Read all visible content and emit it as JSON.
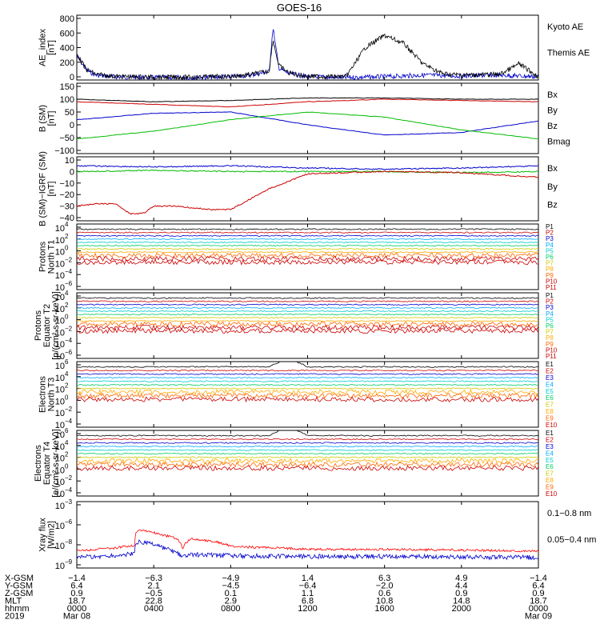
{
  "title": "GOES-16",
  "panels": [
    {
      "id": "ae",
      "ylabel": [
        "AE_index",
        "[nT]"
      ],
      "ticks": [
        "800",
        "600",
        "400",
        "200",
        "0"
      ],
      "legend": [
        {
          "text": "Kyoto AE",
          "color": "#0000cc"
        },
        {
          "text": "Themis AE",
          "color": "#000000"
        }
      ]
    },
    {
      "id": "bsm",
      "ylabel": [
        "B (SM)",
        "[nT]"
      ],
      "ticks": [
        "150",
        "100",
        "50",
        "0",
        "−50",
        "−100"
      ],
      "legend": [
        {
          "text": "Bx",
          "color": "#0000cc"
        },
        {
          "text": "By",
          "color": "#00bb00"
        },
        {
          "text": "Bz",
          "color": "#cc0000"
        },
        {
          "text": "Bmag",
          "color": "#000000"
        }
      ]
    },
    {
      "id": "bigrf",
      "ylabel": [
        "B (SM)−IGRF (SM)",
        "[nT]"
      ],
      "ticks": [
        "10",
        "0",
        "−10",
        "−20",
        "−30",
        "−40"
      ],
      "legend": [
        {
          "text": "Bx",
          "color": "#0000cc"
        },
        {
          "text": "By",
          "color": "#00bb00"
        },
        {
          "text": "Bz",
          "color": "#cc0000"
        }
      ]
    },
    {
      "id": "pn",
      "ylabel": [
        "Protons",
        "North T1"
      ],
      "ticks": [
        {
          "b": "10",
          "e": "4"
        },
        {
          "b": "10",
          "e": "2"
        },
        {
          "b": "10",
          "e": "0"
        },
        {
          "b": "10",
          "e": "−2"
        },
        {
          "b": "10",
          "e": "−4"
        },
        {
          "b": "10",
          "e": "−6"
        }
      ],
      "legend": [
        "P1",
        "P2",
        "P3",
        "P4",
        "P5",
        "P6",
        "P7",
        "P8",
        "P9",
        "P10",
        "P11"
      ]
    },
    {
      "id": "pe",
      "ylabel": [
        "Protons",
        "Equator T2",
        "[p/(cm²-s-sr-keV)]"
      ],
      "ticks": [
        {
          "b": "10",
          "e": "4"
        },
        {
          "b": "10",
          "e": "2"
        },
        {
          "b": "10",
          "e": "0"
        },
        {
          "b": "10",
          "e": "−2"
        },
        {
          "b": "10",
          "e": "−4"
        },
        {
          "b": "10",
          "e": "−6"
        }
      ],
      "legend": [
        "P1",
        "P2",
        "P3",
        "P4",
        "P5",
        "P6",
        "P7",
        "P8",
        "P9",
        "P10",
        "P11"
      ]
    },
    {
      "id": "en",
      "ylabel": [
        "Electrons",
        "North T3"
      ],
      "ticks": [
        {
          "b": "10",
          "e": "6"
        },
        {
          "b": "10",
          "e": "4"
        },
        {
          "b": "10",
          "e": "2"
        },
        {
          "b": "10",
          "e": "0"
        },
        {
          "b": "10",
          "e": "−2"
        },
        {
          "b": "10",
          "e": "−4"
        }
      ],
      "legend": [
        "E1",
        "E2",
        "E3",
        "E4",
        "E5",
        "E6",
        "E7",
        "E8",
        "E9",
        "E10"
      ]
    },
    {
      "id": "ee",
      "ylabel": [
        "Electrons",
        "Equator T4",
        "[e/(cm²-s-sr-keV)]"
      ],
      "ticks": [
        {
          "b": "10",
          "e": "6"
        },
        {
          "b": "10",
          "e": "4"
        },
        {
          "b": "10",
          "e": "2"
        },
        {
          "b": "10",
          "e": "0"
        },
        {
          "b": "10",
          "e": "−2"
        },
        {
          "b": "10",
          "e": "−4"
        }
      ],
      "legend": [
        "E1",
        "E2",
        "E3",
        "E4",
        "E5",
        "E6",
        "E7",
        "E8",
        "E9",
        "E10"
      ]
    },
    {
      "id": "xray",
      "ylabel": [
        "Xray flux",
        "[W/m2]"
      ],
      "ticks": [
        {
          "b": "10",
          "e": "−3"
        },
        {
          "b": "10",
          "e": "−6"
        },
        {
          "b": "10",
          "e": "−8"
        },
        {
          "b": "10",
          "e": "−9"
        }
      ],
      "legend": [
        {
          "text": "0.1−0.8 nm",
          "color": "#ff0000"
        },
        {
          "text": "0.05−0.4 nm",
          "color": "#0000cc"
        }
      ]
    }
  ],
  "band_colors_p": [
    "#000000",
    "#cc0000",
    "#0000cc",
    "#00aaff",
    "#00cccc",
    "#00cc66",
    "#cccc00",
    "#ffaa00",
    "#ff6600",
    "#cc0000",
    "#cc0000"
  ],
  "band_colors_e": [
    "#000000",
    "#cc0000",
    "#0000cc",
    "#00aaff",
    "#00cccc",
    "#00cc66",
    "#cccc00",
    "#ffaa00",
    "#ff6600",
    "#cc0000"
  ],
  "footer": {
    "rows": [
      {
        "label": "X-GSM",
        "values": [
          "−1.4",
          "−6.3",
          "−4.9",
          "1.4",
          "6.3",
          "4.9",
          "−1.4"
        ]
      },
      {
        "label": "Y-GSM",
        "values": [
          "6.4",
          "2.1",
          "−4.5",
          "−6.4",
          "−2.0",
          "4.4",
          "6.4"
        ]
      },
      {
        "label": "Z-GSM",
        "values": [
          "0.9",
          "−0.5",
          "0.1",
          "1.1",
          "0.6",
          "0.9",
          "0.9"
        ]
      },
      {
        "label": "MLT",
        "values": [
          "18.7",
          "22.8",
          "2.9",
          "6.8",
          "10.8",
          "14.8",
          "18.7"
        ]
      },
      {
        "label": "hhmm",
        "values": [
          "0000",
          "0400",
          "0800",
          "1200",
          "1600",
          "2000",
          "0000"
        ]
      }
    ],
    "year": "2019",
    "date_start": "Mar 08",
    "date_end": "Mar 09"
  },
  "chart_data": {
    "type": "line",
    "title": "GOES-16",
    "x": [
      "0000",
      "0400",
      "0800",
      "1200",
      "1600",
      "2000",
      "0000"
    ],
    "ae_index": {
      "ylim": [
        0,
        800
      ],
      "series": [
        {
          "name": "Kyoto AE",
          "x_hours": [
            0,
            0.5,
            1,
            2,
            4,
            6,
            8,
            9,
            10,
            10.2,
            10.5,
            11,
            12,
            14,
            16,
            18,
            20,
            22,
            24
          ],
          "values": [
            300,
            120,
            60,
            40,
            30,
            30,
            40,
            60,
            100,
            650,
            150,
            80,
            40,
            30,
            40,
            60,
            50,
            60,
            40
          ]
        },
        {
          "name": "Themis AE",
          "x_hours": [
            0,
            0.5,
            1,
            2,
            4,
            6,
            8,
            9,
            10,
            10.2,
            10.5,
            11,
            12,
            14,
            15,
            16,
            17,
            18,
            19,
            20,
            22,
            23,
            24
          ],
          "values": [
            320,
            130,
            70,
            45,
            35,
            35,
            45,
            65,
            110,
            500,
            180,
            90,
            45,
            40,
            400,
            550,
            450,
            200,
            80,
            60,
            70,
            200,
            40
          ]
        }
      ]
    },
    "b_sm": {
      "ylim": [
        -100,
        150
      ],
      "series": [
        {
          "name": "Bx",
          "x_hours": [
            0,
            4,
            8,
            12,
            16,
            20,
            24
          ],
          "values": [
            20,
            45,
            50,
            0,
            -40,
            -30,
            15
          ]
        },
        {
          "name": "By",
          "x_hours": [
            0,
            4,
            8,
            12,
            16,
            20,
            24
          ],
          "values": [
            -55,
            -25,
            20,
            50,
            30,
            -20,
            -55
          ]
        },
        {
          "name": "Bz",
          "x_hours": [
            0,
            4,
            8,
            12,
            16,
            20,
            24
          ],
          "values": [
            90,
            80,
            70,
            90,
            100,
            95,
            90
          ]
        },
        {
          "name": "Bmag",
          "x_hours": [
            0,
            4,
            8,
            12,
            16,
            20,
            24
          ],
          "values": [
            100,
            90,
            95,
            105,
            105,
            100,
            100
          ]
        }
      ]
    },
    "b_minus_igrf": {
      "ylim": [
        -40,
        10
      ],
      "series": [
        {
          "name": "Bx",
          "x_hours": [
            0,
            4,
            8,
            12,
            16,
            20,
            24
          ],
          "values": [
            5,
            4,
            5,
            3,
            2,
            3,
            5
          ]
        },
        {
          "name": "By",
          "x_hours": [
            0,
            4,
            8,
            12,
            16,
            20,
            24
          ],
          "values": [
            0,
            1,
            0,
            0,
            0,
            -1,
            0
          ]
        },
        {
          "name": "Bz",
          "x_hours": [
            0,
            1,
            2,
            2.8,
            3.5,
            4,
            5,
            7,
            8,
            10,
            12,
            16,
            20,
            24
          ],
          "values": [
            -30,
            -28,
            -28,
            -37,
            -36,
            -30,
            -30,
            -33,
            -33,
            -15,
            -2,
            0,
            -1,
            -5
          ]
        }
      ]
    },
    "xray_flux": {
      "series": [
        {
          "name": "0.1−0.8 nm",
          "x_hours": [
            0,
            2,
            3,
            3.2,
            4,
            4.5,
            5,
            5.5,
            6,
            8,
            12,
            16,
            20,
            24
          ],
          "values": [
            1e-08,
            2e-08,
            4e-08,
            2e-06,
            1e-06,
            5e-07,
            3e-07,
            1e-08,
            2e-07,
            3e-08,
            1.5e-08,
            1.5e-08,
            1.2e-08,
            1e-08
          ]
        },
        {
          "name": "0.05−0.4 nm",
          "x_hours": [
            0,
            2,
            3,
            3.2,
            4,
            4.5,
            5,
            5.5,
            6,
            8,
            12,
            16,
            20,
            24
          ],
          "values": [
            2e-09,
            3e-09,
            5e-09,
            1e-07,
            5e-08,
            2e-08,
            8e-09,
            2e-09,
            4e-09,
            3e-09,
            2.5e-09,
            2.5e-09,
            2.2e-09,
            2e-09
          ]
        }
      ]
    }
  }
}
